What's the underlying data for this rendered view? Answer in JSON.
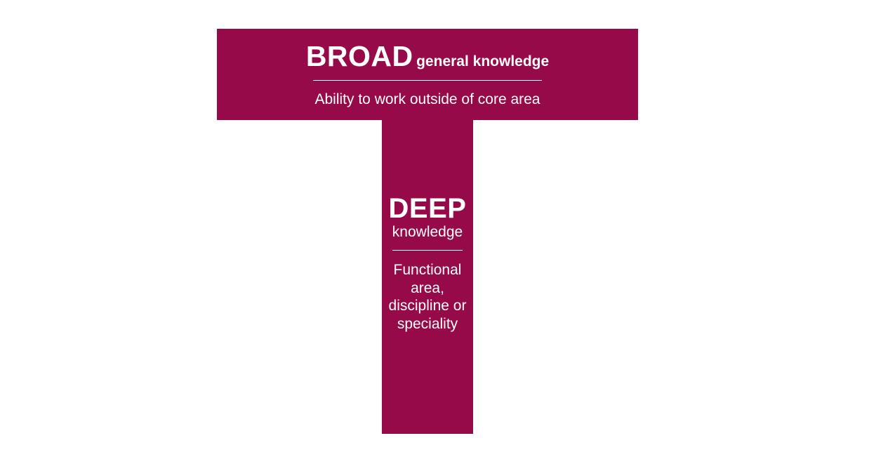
{
  "colors": {
    "shape_fill": "#970a4a",
    "text": "#ffffff",
    "background": "#ffffff"
  },
  "broad": {
    "title": "BROAD",
    "subtitle": "general knowledge",
    "description": "Ability to work outside of core area"
  },
  "deep": {
    "title": "DEEP",
    "subtitle": "knowledge",
    "description": "Functional area, discipline or speciality"
  }
}
